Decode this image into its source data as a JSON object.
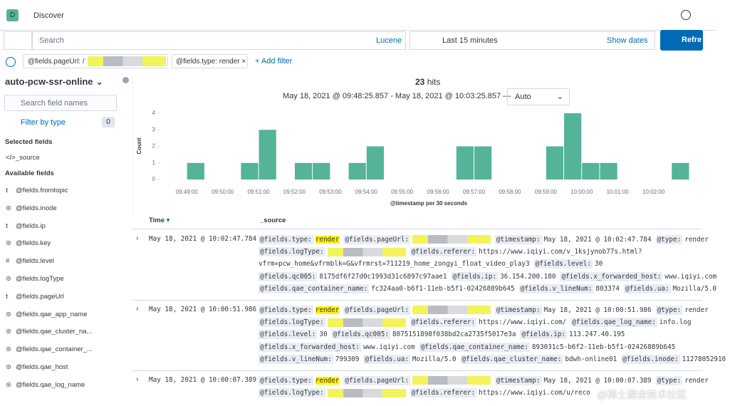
{
  "header": {
    "logo": "D",
    "title": "Discover"
  },
  "query_bar": {
    "placeholder": "Search",
    "language": "Lucene",
    "time": "Last 15 minutes",
    "show_dates": "Show dates",
    "refresh": "Refre"
  },
  "filters": {
    "items": [
      "@fields.pageUrl: /",
      "@fields.type: render"
    ],
    "add": "+ Add filter"
  },
  "sidebar": {
    "index": "auto-pcw-ssr-online",
    "search_placeholder": "Search field names",
    "filter_by_type": "Filter by type",
    "filter_count": 0,
    "selected_title": "Selected fields",
    "selected": [
      {
        "icon": "</>",
        "name": "_source"
      }
    ],
    "available_title": "Available fields",
    "available": [
      {
        "icon": "t",
        "name": "@fields.fromtopic"
      },
      {
        "icon": "⊙",
        "name": "@fields.inode"
      },
      {
        "icon": "t",
        "name": "@fields.ip"
      },
      {
        "icon": "⊙",
        "name": "@fields.key"
      },
      {
        "icon": "#",
        "name": "@fields.level"
      },
      {
        "icon": "⊙",
        "name": "@fields.logType"
      },
      {
        "icon": "t",
        "name": "@fields.pageUrl"
      },
      {
        "icon": "⊙",
        "name": "@fields.qae_app_name"
      },
      {
        "icon": "⊙",
        "name": "@fields.qae_cluster_na..."
      },
      {
        "icon": "⊙",
        "name": "@fields.qae_container_..."
      },
      {
        "icon": "⊙",
        "name": "@fields.qae_host"
      },
      {
        "icon": "⊙",
        "name": "@fields.qae_log_name"
      }
    ]
  },
  "summary": {
    "hits": 23,
    "hits_label": "hits",
    "range": "May 18, 2021 @ 09:48:25.857 - May 18, 2021 @ 10:03:25.857 —",
    "interval": "Auto"
  },
  "histogram": {
    "type": "bar",
    "y_label": "Count",
    "x_label": "@timestamp per 30 seconds",
    "color": "#54b399",
    "values": [
      0,
      1,
      0,
      0,
      1,
      3,
      0,
      1,
      1,
      0,
      1,
      2,
      0,
      0,
      0,
      0,
      2,
      2,
      0,
      0,
      0,
      2,
      4,
      1,
      1,
      0,
      0,
      0,
      1
    ],
    "ylim": [
      0,
      4
    ],
    "yticks": [
      0,
      1,
      2,
      3,
      4
    ],
    "xticks": [
      "09:49:00",
      "09:50:00",
      "09:51:00",
      "09:52:00",
      "09:53:00",
      "09:54:00",
      "09:55:00",
      "09:56:00",
      "09:57:00",
      "09:58:00",
      "09:59:00",
      "10:00:00",
      "10:01:00",
      "10:02:00"
    ]
  },
  "table": {
    "headers": [
      "Time",
      "_source"
    ],
    "rows": [
      {
        "time": "May 18, 2021 @ 10:02:47.784",
        "lines": [
          [
            {
              "key": "@fields.type:",
              "value": "render",
              "highlight": true
            },
            {
              "key": "@fields.pageUrl:"
            },
            {
              "key": "@timestamp:",
              "value": "May 18, 2021 @ 10:02:47.784"
            },
            {
              "key": "@type:",
              "value": "render"
            }
          ],
          [
            {
              "key": "@fields.logType:"
            },
            {
              "key": "@fields.referer:",
              "value": "https://www.iqiyi.com/v_1ksjynob77s.html?"
            }
          ],
          [
            {
              "value": "vfrm=pcw_home&vfrmblk=G&vfrmrst=711219_home_zongyi_float_video_play3"
            },
            {
              "key": "@fields.level:",
              "value": "30"
            }
          ],
          [
            {
              "key": "@fields.qc005:",
              "value": "8175df6f27d0c1993d31c6897c97aae1"
            },
            {
              "key": "@fields.ip:",
              "value": "36.154.200.180"
            },
            {
              "key": "@fields.x_forwarded_host:",
              "value": "www.iqiyi.com"
            }
          ],
          [
            {
              "key": "@fields.qae_container_name:",
              "value": "fc324aa0-b6f1-11eb-b5f1-02426889b645"
            },
            {
              "key": "@fields.v_lineNum:",
              "value": "803374"
            },
            {
              "key": "@fields.ua:",
              "value": "Mozilla/5.0"
            }
          ]
        ]
      },
      {
        "time": "May 18, 2021 @ 10:00:51.986",
        "lines": [
          [
            {
              "key": "@fields.type:",
              "value": "render",
              "highlight": true
            },
            {
              "key": "@fields.pageUrl:"
            },
            {
              "key": "@timestamp:",
              "value": "May 18, 2021 @ 10:00:51.986"
            },
            {
              "key": "@type:",
              "value": "render"
            }
          ],
          [
            {
              "key": "@fields.logType:"
            },
            {
              "key": "@fields.referer:",
              "value": "https://www.iqiyi.com/"
            },
            {
              "key": "@fields.qae_log_name:",
              "value": "info.log"
            }
          ],
          [
            {
              "key": "@fields.level:",
              "value": "30"
            },
            {
              "key": "@fields.qc005:",
              "value": "8075151898f038bd2ca2735f5017e3a"
            },
            {
              "key": "@fields.ip:",
              "value": "113.247.40.195"
            }
          ],
          [
            {
              "key": "@fields.x_forwarded_host:",
              "value": "www.iqiyi.com"
            },
            {
              "key": "@fields.qae_container_name:",
              "value": "893031c5-b6f2-11eb-b5f1-02426889b645"
            }
          ],
          [
            {
              "key": "@fields.v_lineNum:",
              "value": "799309"
            },
            {
              "key": "@fields.ua:",
              "value": "Mozilla/5.0"
            },
            {
              "key": "@fields.qae_cluster_name:",
              "value": "bdwh-online01"
            },
            {
              "key": "@fields.inode:",
              "value": "11278052910"
            }
          ]
        ]
      },
      {
        "time": "May 18, 2021 @ 10:00:07.389",
        "lines": [
          [
            {
              "key": "@fields.type:",
              "value": "render",
              "highlight": true
            },
            {
              "key": "@fields.pageUrl:"
            },
            {
              "key": "@timestamp:",
              "value": "May 18, 2021 @ 10:00:07.389"
            },
            {
              "key": "@type:",
              "value": "render"
            }
          ],
          [
            {
              "key": "@fields.logType:"
            },
            {
              "key": "@fields.referer:",
              "value": "https://www.iqiyi.com/u/reco"
            }
          ]
        ]
      }
    ]
  },
  "watermark": "@稀土掘金技术社区"
}
